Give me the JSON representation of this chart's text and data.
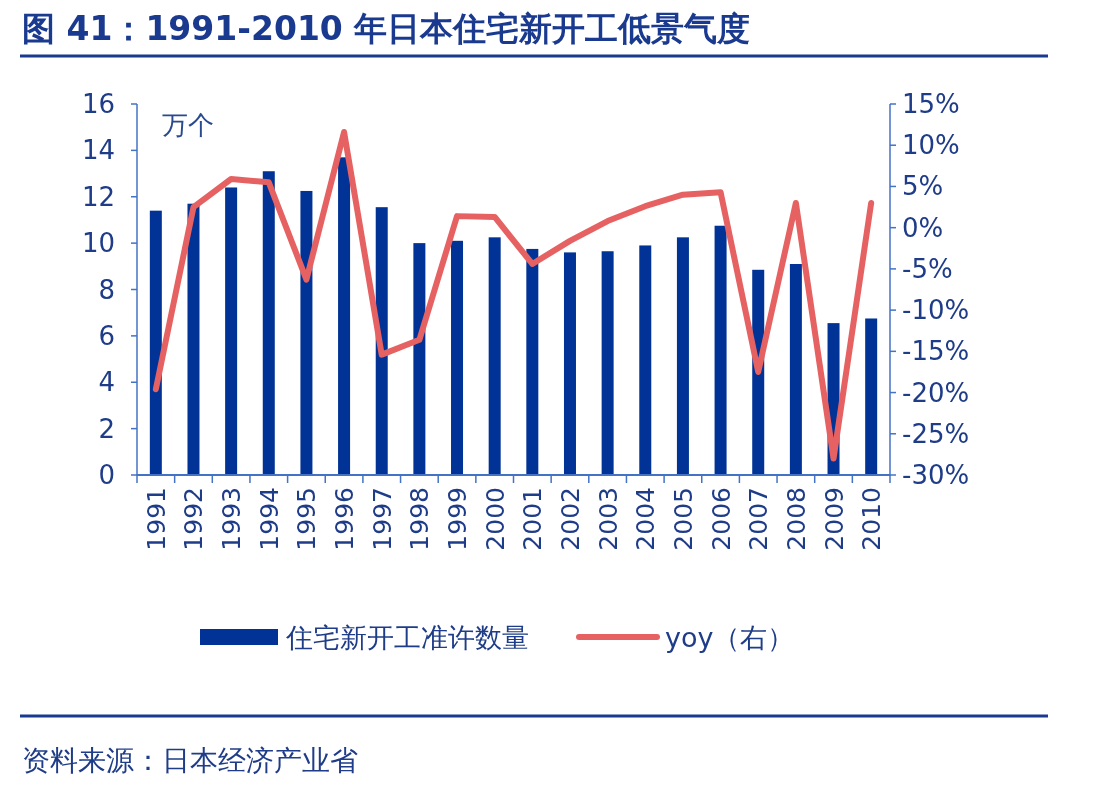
{
  "chart_data": {
    "type": "bar",
    "title": "图 41：1991-2010 年日本住宅新开工低景气度",
    "ylabel": "万个",
    "categories": [
      "1991",
      "1992",
      "1993",
      "1994",
      "1995",
      "1996",
      "1997",
      "1998",
      "1999",
      "2000",
      "2001",
      "2002",
      "2003",
      "2004",
      "2005",
      "2006",
      "2007",
      "2008",
      "2009",
      "2010"
    ],
    "series": [
      {
        "name": "住宅新开工准许数量",
        "color": "#003395",
        "values": [
          11.4,
          11.7,
          12.4,
          13.1,
          12.25,
          13.7,
          11.55,
          10.0,
          10.1,
          10.25,
          9.75,
          9.6,
          9.65,
          9.9,
          10.25,
          10.75,
          8.85,
          9.1,
          6.55,
          6.75
        ]
      },
      {
        "name": "yoy（右）",
        "type": "line",
        "axis": "y2",
        "color": "#e66262",
        "values": [
          -19.6,
          2.5,
          5.9,
          5.5,
          -6.3,
          11.6,
          -15.4,
          -13.6,
          1.4,
          1.3,
          -4.4,
          -1.6,
          0.8,
          2.6,
          4.0,
          4.3,
          -17.5,
          3.0,
          -28,
          3.0
        ]
      }
    ],
    "ylim": [
      0,
      16
    ],
    "yticks": [
      0,
      2,
      4,
      6,
      8,
      10,
      12,
      14,
      16
    ],
    "y2lim": [
      -30,
      15
    ],
    "y2ticks": [
      {
        "value": -30,
        "label": "-30%"
      },
      {
        "value": -25,
        "label": "-25%"
      },
      {
        "value": -20,
        "label": "-20%"
      },
      {
        "value": -15,
        "label": "-15%"
      },
      {
        "value": -10,
        "label": "-10%"
      },
      {
        "value": -5,
        "label": "-5%"
      },
      {
        "value": 0,
        "label": "0%"
      },
      {
        "value": 5,
        "label": "5%"
      },
      {
        "value": 10,
        "label": "10%"
      },
      {
        "value": 15,
        "label": "15%"
      }
    ],
    "legend": "bottom",
    "grid": false,
    "annotations": [
      "资料来源：日本经济产业省"
    ]
  }
}
